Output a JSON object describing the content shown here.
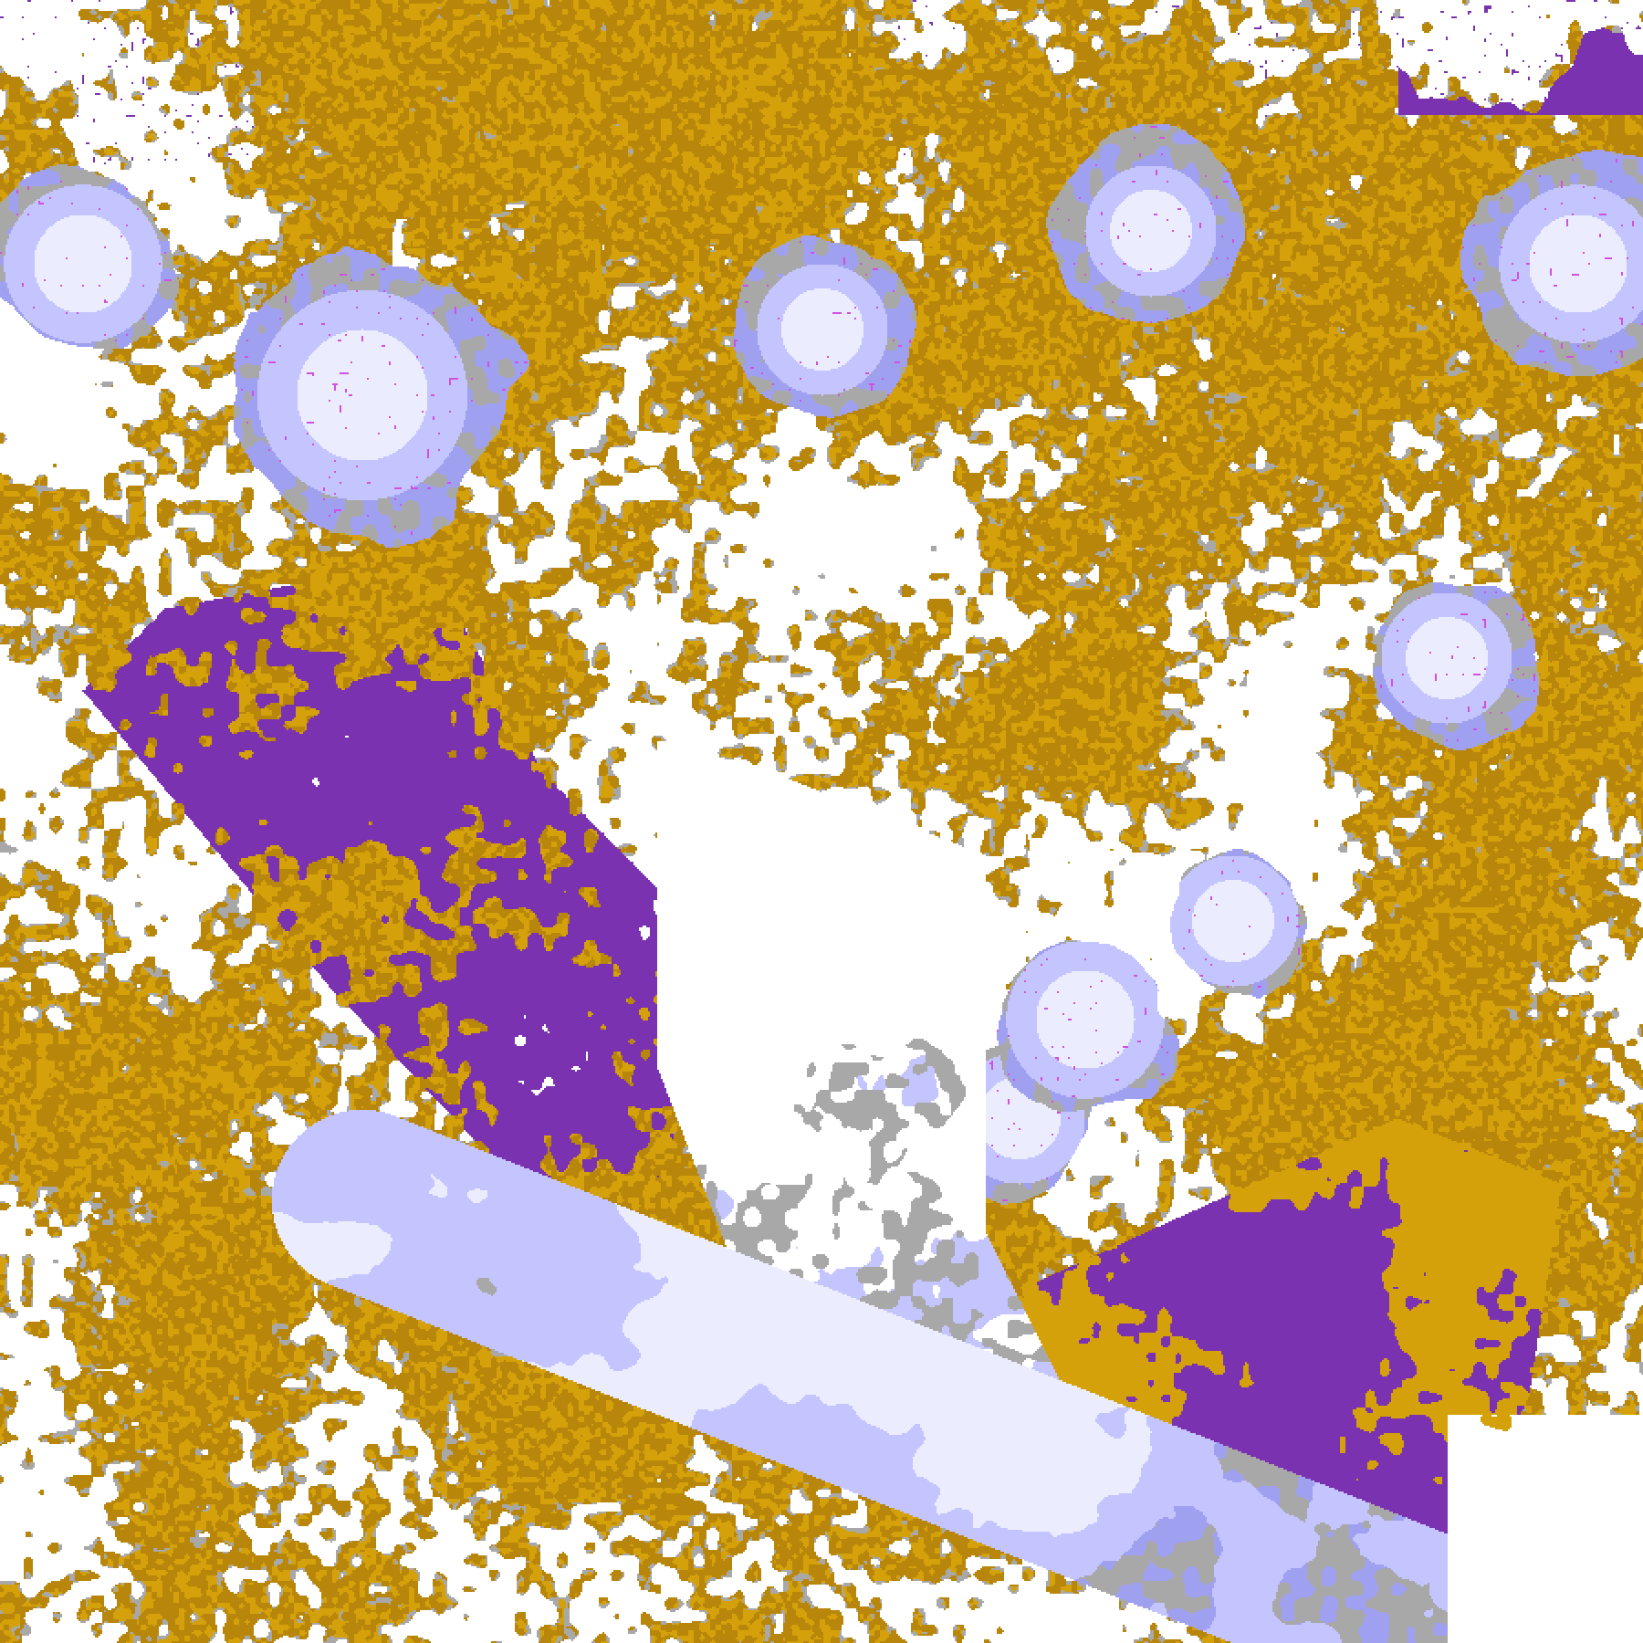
{
  "map": {
    "type": "satellite cloud-type classification",
    "labels_visible": false,
    "palette": {
      "clear": "#ffffff",
      "gold": "#d4a10a",
      "gold_dark": "#b8860b",
      "purple": "#7b32b0",
      "magenta": "#d050e0",
      "lavender": "#c4c4ff",
      "lavender_mid": "#a0a0f0",
      "lavender_light": "#ececff",
      "gray": "#a8a8a8"
    }
  }
}
